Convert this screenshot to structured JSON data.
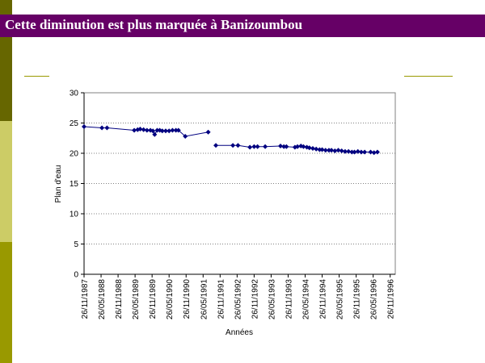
{
  "slide": {
    "title": "Cette diminution est plus marquée à Banizoumbou",
    "colors": {
      "title_bg": "#660066",
      "title_text": "#ffffff",
      "accent_dark": "#666600",
      "accent_light": "#cccc66",
      "accent_mid": "#999900"
    }
  },
  "chart_data": {
    "type": "line",
    "title": "",
    "xlabel": "Années",
    "ylabel": "Plan d'eau",
    "ylim": [
      0,
      30
    ],
    "yticks": [
      0,
      5,
      10,
      15,
      20,
      25,
      30
    ],
    "xticks": [
      "26/11/1987",
      "26/05/1988",
      "26/11/1988",
      "26/05/1989",
      "26/11/1989",
      "26/05/1990",
      "26/11/1990",
      "26/05/1991",
      "26/11/1991",
      "26/05/1992",
      "26/11/1992",
      "26/05/1993",
      "26/11/1993",
      "26/05/1994",
      "26/11/1994",
      "26/05/1995",
      "26/11/1995",
      "26/05/1996",
      "26/11/1996"
    ],
    "grid": true,
    "marker_color": "#000080",
    "segments": [
      [
        [
          0,
          24.4
        ],
        [
          1.05,
          24.2
        ],
        [
          1.35,
          24.2
        ],
        [
          2.95,
          23.8
        ],
        [
          3.15,
          23.9
        ],
        [
          3.3,
          24.0
        ],
        [
          3.5,
          23.9
        ],
        [
          3.7,
          23.8
        ],
        [
          3.9,
          23.8
        ],
        [
          4.05,
          23.7
        ],
        [
          4.15,
          23.1
        ],
        [
          4.3,
          23.8
        ],
        [
          4.45,
          23.8
        ],
        [
          4.6,
          23.7
        ],
        [
          4.8,
          23.7
        ],
        [
          5.0,
          23.7
        ],
        [
          5.2,
          23.8
        ],
        [
          5.4,
          23.8
        ],
        [
          5.55,
          23.8
        ],
        [
          5.95,
          22.8
        ],
        [
          7.3,
          23.5
        ]
      ],
      [
        [
          7.75,
          21.3
        ],
        [
          8.75,
          21.3
        ],
        [
          9.05,
          21.3
        ],
        [
          9.75,
          21.0
        ],
        [
          10.0,
          21.1
        ],
        [
          10.2,
          21.1
        ],
        [
          10.65,
          21.1
        ],
        [
          11.55,
          21.2
        ],
        [
          11.75,
          21.1
        ],
        [
          11.9,
          21.1
        ],
        [
          12.4,
          21.0
        ],
        [
          12.55,
          21.1
        ],
        [
          12.75,
          21.2
        ],
        [
          12.9,
          21.1
        ],
        [
          13.1,
          21.0
        ],
        [
          13.25,
          20.9
        ],
        [
          13.45,
          20.8
        ],
        [
          13.65,
          20.7
        ],
        [
          13.85,
          20.6
        ],
        [
          14.0,
          20.6
        ],
        [
          14.2,
          20.5
        ],
        [
          14.4,
          20.5
        ],
        [
          14.55,
          20.5
        ],
        [
          14.75,
          20.4
        ],
        [
          14.95,
          20.5
        ],
        [
          15.15,
          20.4
        ],
        [
          15.35,
          20.3
        ],
        [
          15.55,
          20.3
        ],
        [
          15.75,
          20.2
        ],
        [
          15.9,
          20.2
        ],
        [
          16.1,
          20.3
        ],
        [
          16.3,
          20.2
        ],
        [
          16.5,
          20.2
        ],
        [
          16.85,
          20.2
        ],
        [
          17.05,
          20.1
        ],
        [
          17.25,
          20.2
        ]
      ]
    ]
  }
}
